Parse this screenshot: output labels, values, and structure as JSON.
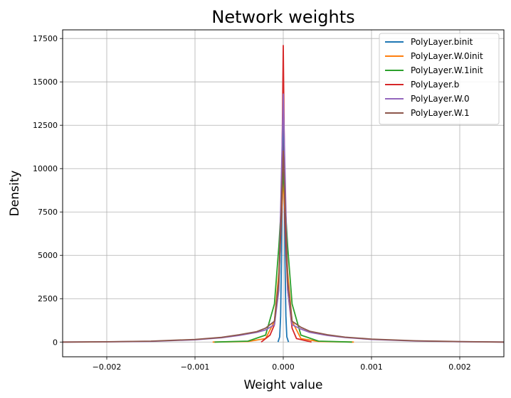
{
  "chart_data": {
    "type": "line",
    "title": "Network weights",
    "xlabel": "Weight value",
    "ylabel": "Density",
    "xlim": [
      -0.0025,
      0.0025
    ],
    "ylim": [
      -850,
      18000
    ],
    "xticks": [
      -0.002,
      -0.001,
      0.0,
      0.001,
      0.002
    ],
    "xtick_labels": [
      "−0.002",
      "−0.001",
      "0.000",
      "0.001",
      "0.002"
    ],
    "yticks": [
      0,
      2500,
      5000,
      7500,
      10000,
      12500,
      15000,
      17500
    ],
    "ytick_labels": [
      "0",
      "2500",
      "5000",
      "7500",
      "10000",
      "12500",
      "15000",
      "17500"
    ],
    "grid": true,
    "legend_position": "top-right",
    "series": [
      {
        "name": "PolyLayer.binit",
        "color": "#1f77b4",
        "x": [
          -6e-05,
          -4e-05,
          -3e-05,
          -2e-05,
          -1e-05,
          0.0,
          1e-05,
          2e-05,
          3e-05,
          4e-05,
          6e-05
        ],
        "y": [
          0,
          300,
          1500,
          5000,
          10500,
          13000,
          10000,
          4500,
          1500,
          300,
          0
        ]
      },
      {
        "name": "PolyLayer.W.0init",
        "color": "#ff7f0e",
        "x": [
          -0.0008,
          -0.0004,
          -0.0002,
          -0.0001,
          -5e-05,
          0.0,
          5e-05,
          0.0001,
          0.0002,
          0.0004,
          0.0008
        ],
        "y": [
          0,
          30,
          200,
          1200,
          4000,
          9500,
          4000,
          1200,
          200,
          30,
          0
        ]
      },
      {
        "name": "PolyLayer.W.1init",
        "color": "#2ca02c",
        "x": [
          -0.00078,
          -0.0004,
          -0.0002,
          -0.0001,
          -5e-05,
          0.0,
          5e-05,
          0.0001,
          0.0002,
          0.0004,
          0.00078
        ],
        "y": [
          0,
          50,
          400,
          2200,
          5500,
          9800,
          5500,
          2200,
          400,
          50,
          0
        ]
      },
      {
        "name": "PolyLayer.b",
        "color": "#d62728",
        "x": [
          -0.00025,
          -0.00015,
          -0.0001,
          -5e-05,
          -2e-05,
          0.0,
          2e-05,
          5e-05,
          0.0001,
          0.00015,
          0.00032
        ],
        "y": [
          0,
          400,
          1000,
          3500,
          7500,
          17100,
          7000,
          3000,
          800,
          200,
          0
        ]
      },
      {
        "name": "PolyLayer.W.0",
        "color": "#9467bd",
        "x": [
          -0.0025,
          -0.002,
          -0.0015,
          -0.001,
          -0.0007,
          -0.0005,
          -0.0003,
          -0.0002,
          -0.0001,
          -5e-05,
          0.0,
          5e-05,
          0.0001,
          0.0002,
          0.0003,
          0.0005,
          0.0007,
          0.001,
          0.0015,
          0.002,
          0.0025
        ],
        "y": [
          0,
          10,
          40,
          130,
          250,
          380,
          560,
          700,
          1000,
          3000,
          14300,
          3000,
          1000,
          750,
          560,
          380,
          260,
          150,
          60,
          20,
          0
        ]
      },
      {
        "name": "PolyLayer.W.1",
        "color": "#8c564b",
        "x": [
          -0.0025,
          -0.002,
          -0.0015,
          -0.001,
          -0.0007,
          -0.0005,
          -0.0003,
          -0.0002,
          -0.0001,
          -5e-05,
          0.0,
          5e-05,
          0.0001,
          0.0002,
          0.0003,
          0.0005,
          0.0007,
          0.001,
          0.0015,
          0.002,
          0.0025
        ],
        "y": [
          0,
          15,
          50,
          150,
          270,
          420,
          600,
          800,
          1200,
          3500,
          11000,
          3500,
          1200,
          850,
          620,
          420,
          280,
          170,
          70,
          25,
          0
        ]
      }
    ]
  }
}
